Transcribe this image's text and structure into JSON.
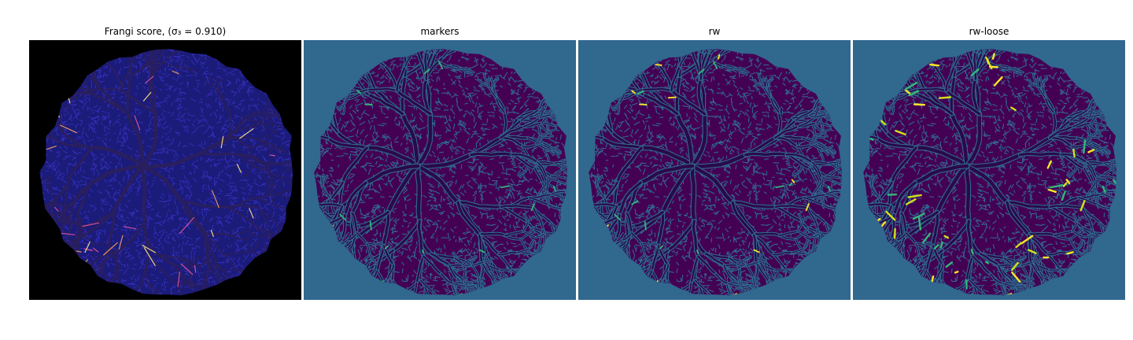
{
  "figure": {
    "panels": [
      {
        "title": "Frangi score, (σ₃ = 0.910)",
        "image": "frangi-vesselness-map",
        "background_color": "#000000",
        "tissue_color": "#1b1b7a",
        "texture_color": "#3a34c8",
        "vessel_color": "#2a1f5e",
        "highlight_colors": [
          "#e8559a",
          "#f6a15a",
          "#ffe98a"
        ]
      },
      {
        "title": "markers",
        "image": "marker-label-map",
        "background_color": "#31688e",
        "tissue_color": "#440154",
        "texture_color": "#31688e",
        "vessel_color": "#2a0a4a",
        "highlight_colors": [
          "#35b779"
        ]
      },
      {
        "title": "rw",
        "image": "random-walker-segmentation",
        "background_color": "#31688e",
        "tissue_color": "#440154",
        "texture_color": "#31688e",
        "vessel_color": "#2a0a4a",
        "highlight_colors": [
          "#35b779",
          "#fde725"
        ]
      },
      {
        "title": "rw-loose",
        "image": "random-walker-loose-segmentation",
        "background_color": "#31688e",
        "tissue_color": "#440154",
        "texture_color": "#31688e",
        "vessel_color": "#2a0a4a",
        "highlight_colors": [
          "#35b779",
          "#d2e21b",
          "#fde725"
        ]
      }
    ]
  }
}
